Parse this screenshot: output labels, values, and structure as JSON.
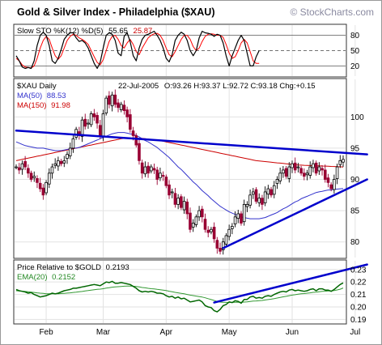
{
  "header": {
    "title": "Gold & Silver Index - Philadelphia ($XAU)",
    "copyright": "© StockCharts.com"
  },
  "chart_data": [
    {
      "type": "line",
      "panel": "stochastic",
      "label": "Slow STO %K(12) %D(5)",
      "k_value": "55.65",
      "d_value": "25.87",
      "ylim": [
        0,
        100
      ],
      "yticks": [
        "80",
        "50",
        "20"
      ],
      "series": [
        {
          "name": "%K",
          "color": "#000000",
          "values": [
            40,
            30,
            18,
            15,
            17,
            15,
            30,
            60,
            80,
            86,
            80,
            60,
            30,
            25,
            35,
            52,
            72,
            80,
            85,
            85,
            75,
            68,
            70,
            65,
            55,
            40,
            25,
            15,
            27,
            55,
            80,
            85,
            82,
            70,
            45,
            40,
            78,
            85,
            68,
            40,
            30,
            55,
            72,
            80,
            82,
            85,
            88,
            80,
            70,
            55,
            35,
            28,
            42,
            70,
            80,
            86,
            82,
            70,
            50,
            40,
            50,
            75,
            88,
            85,
            84,
            82,
            78,
            82,
            80,
            65,
            40,
            20,
            40,
            55,
            70,
            80,
            70,
            45,
            20,
            20,
            38,
            50
          ]
        },
        {
          "name": "%D",
          "color": "#ff0000",
          "values": [
            35,
            30,
            22,
            18,
            17,
            16,
            20,
            35,
            55,
            70,
            78,
            72,
            55,
            40,
            33,
            40,
            55,
            70,
            78,
            82,
            80,
            75,
            72,
            68,
            62,
            50,
            38,
            27,
            22,
            32,
            50,
            68,
            78,
            80,
            72,
            60,
            55,
            65,
            72,
            62,
            48,
            42,
            55,
            65,
            75,
            80,
            83,
            84,
            80,
            70,
            55,
            42,
            38,
            48,
            60,
            72,
            80,
            80,
            72,
            58,
            50,
            55,
            68,
            78,
            82,
            83,
            82,
            80,
            80,
            76,
            62,
            45,
            35,
            38,
            50,
            65,
            72,
            65,
            48,
            30,
            25,
            25
          ]
        }
      ]
    },
    {
      "type": "candlestick",
      "panel": "price",
      "label": "$XAU Daily",
      "quote_date": "22-Jul-2005",
      "quote": "O:93.26 H:93.37 L:92.72 C:93.18 Chg:+0.15",
      "ylim": [
        77.5,
        106
      ],
      "yticks": [
        "100",
        "95",
        "90",
        "85",
        "80"
      ],
      "x_labels": [
        "Feb",
        "Mar",
        "Apr",
        "May",
        "Jun",
        "Jul"
      ],
      "x_label_index": [
        10,
        29,
        50,
        71,
        92,
        113
      ],
      "close": [
        92,
        91.5,
        92.5,
        92,
        91,
        90,
        90.5,
        89.5,
        88.5,
        87.5,
        89.5,
        91,
        92,
        92.5,
        93,
        92.5,
        93,
        94,
        95,
        96.5,
        98,
        97,
        99.5,
        98.5,
        99,
        100.5,
        100,
        99,
        97,
        100.5,
        103,
        102,
        103.5,
        102,
        101.5,
        102,
        101,
        100,
        98,
        97,
        95.5,
        93,
        91,
        92,
        91,
        92,
        91.5,
        90,
        91,
        90.5,
        89,
        87.5,
        88,
        86,
        87,
        85.5,
        86.5,
        84.5,
        82,
        83,
        84,
        85,
        84,
        82,
        81.5,
        82,
        80.5,
        79,
        78.5,
        80,
        81,
        82,
        82.5,
        84,
        84.5,
        83,
        86,
        86,
        87.5,
        88,
        86.5,
        87,
        86,
        88,
        88.5,
        87.5,
        89,
        90,
        91,
        91.5,
        90.5,
        92,
        92.5,
        91.5,
        92,
        91,
        90.5,
        91,
        92,
        92.5,
        91,
        92,
        91.5,
        90,
        89.5,
        88.5,
        90,
        92,
        93,
        93.2
      ],
      "series": [
        {
          "name": "MA(50)",
          "value": "88.53",
          "color": "#3333cc",
          "values": [
            96,
            95.8,
            95.6,
            95.4,
            95.3,
            95.2,
            95.1,
            95,
            95,
            95,
            94.9,
            94.8,
            94.7,
            94.6,
            94.6,
            94.6,
            94.7,
            94.8,
            94.9,
            95,
            95,
            95.1,
            95.3,
            95.5,
            95.7,
            95.9,
            96.1,
            96.3,
            96.5,
            96.7,
            96.9,
            97.1,
            97.3,
            97.4,
            97.5,
            97.5,
            97.5,
            97.4,
            97.3,
            97.2,
            97,
            96.8,
            96.5,
            96.2,
            96,
            95.7,
            95.4,
            95.1,
            94.7,
            94.3,
            93.9,
            93.5,
            93,
            92.5,
            92,
            91.6,
            91.1,
            90.6,
            90.1,
            89.6,
            89.2,
            88.7,
            88.2,
            87.8,
            87.4,
            86.9,
            86.5,
            86.1,
            85.7,
            85.4,
            85.1,
            84.8,
            84.6,
            84.4,
            84.2,
            84,
            83.9,
            83.8,
            83.7,
            83.7,
            83.7,
            83.7,
            83.8,
            83.9,
            84.1,
            84.3,
            84.5,
            84.7,
            85,
            85.3,
            85.5,
            85.8,
            86.1,
            86.4,
            86.6,
            86.9,
            87.1,
            87.3,
            87.5,
            87.7,
            87.9,
            88,
            88.1,
            88.2,
            88.3,
            88.3,
            88.4,
            88.45,
            88.5,
            88.53
          ]
        },
        {
          "name": "MA(150)",
          "value": "91.98",
          "color": "#cc0000",
          "values": [
            93,
            93.1,
            93.2,
            93.3,
            93.4,
            93.5,
            93.6,
            93.7,
            93.8,
            93.9,
            94,
            94.1,
            94.2,
            94.3,
            94.4,
            94.5,
            94.6,
            94.7,
            94.8,
            94.9,
            95,
            95.1,
            95.2,
            95.3,
            95.4,
            95.5,
            95.6,
            95.7,
            95.8,
            95.9,
            96,
            96.1,
            96.2,
            96.3,
            96.4,
            96.5,
            96.55,
            96.6,
            96.6,
            96.6,
            96.6,
            96.6,
            96.55,
            96.5,
            96.45,
            96.4,
            96.35,
            96.3,
            96.2,
            96.1,
            96,
            95.9,
            95.8,
            95.7,
            95.6,
            95.5,
            95.4,
            95.3,
            95.2,
            95.1,
            95,
            94.9,
            94.8,
            94.7,
            94.6,
            94.5,
            94.4,
            94.3,
            94.2,
            94.1,
            94,
            93.9,
            93.8,
            93.7,
            93.6,
            93.5,
            93.4,
            93.3,
            93.2,
            93.1,
            93,
            92.95,
            92.9,
            92.85,
            92.8,
            92.75,
            92.7,
            92.65,
            92.6,
            92.55,
            92.5,
            92.45,
            92.4,
            92.35,
            92.3,
            92.28,
            92.26,
            92.24,
            92.22,
            92.2,
            92.18,
            92.16,
            92.14,
            92.12,
            92.1,
            92.08,
            92.06,
            92.04,
            92.02,
            91.98
          ]
        }
      ],
      "trendlines": [
        {
          "color": "#0000cc",
          "from": [
            0,
            97.8
          ],
          "to": [
            117,
            94
          ]
        },
        {
          "color": "#0000cc",
          "from": [
            69,
            79
          ],
          "to": [
            117,
            90
          ]
        }
      ]
    },
    {
      "type": "line",
      "panel": "relative",
      "label": "Price Relative to $GOLD",
      "value": "0.2193",
      "ylim": [
        0.187,
        0.237
      ],
      "yticks": [
        "0.23",
        "0.22",
        "0.21",
        "0.20",
        "0.19"
      ],
      "series": [
        {
          "name": "Price Relative",
          "color": "#006600",
          "values": [
            0.214,
            0.213,
            0.2125,
            0.212,
            0.211,
            0.2115,
            0.21,
            0.209,
            0.208,
            0.2085,
            0.209,
            0.21,
            0.211,
            0.2105,
            0.211,
            0.212,
            0.213,
            0.2135,
            0.214,
            0.215,
            0.215,
            0.2155,
            0.216,
            0.2165,
            0.217,
            0.2175,
            0.218,
            0.2175,
            0.217,
            0.2185,
            0.22,
            0.2195,
            0.2205,
            0.219,
            0.219,
            0.2195,
            0.219,
            0.2185,
            0.218,
            0.2165,
            0.215,
            0.213,
            0.212,
            0.2125,
            0.212,
            0.2125,
            0.212,
            0.211,
            0.211,
            0.2105,
            0.209,
            0.208,
            0.2085,
            0.207,
            0.208,
            0.2065,
            0.207,
            0.2055,
            0.204,
            0.2045,
            0.205,
            0.2055,
            0.204,
            0.201,
            0.2,
            0.1995,
            0.197,
            0.196,
            0.198,
            0.201,
            0.202,
            0.204,
            0.2035,
            0.205,
            0.2045,
            0.203,
            0.206,
            0.206,
            0.208,
            0.2085,
            0.207,
            0.2075,
            0.207,
            0.2085,
            0.209,
            0.2085,
            0.21,
            0.211,
            0.212,
            0.2125,
            0.212,
            0.2135,
            0.214,
            0.213,
            0.2135,
            0.213,
            0.2125,
            0.213,
            0.214,
            0.2145,
            0.213,
            0.2145,
            0.2145,
            0.2135,
            0.2135,
            0.2125,
            0.214,
            0.216,
            0.218,
            0.2193
          ]
        },
        {
          "name": "EMA(20)",
          "value": "0.2152",
          "color": "#339933",
          "values": [
            0.213,
            0.2128,
            0.2126,
            0.2124,
            0.2121,
            0.2119,
            0.2116,
            0.2113,
            0.211,
            0.2108,
            0.2106,
            0.2106,
            0.2106,
            0.2106,
            0.2106,
            0.2107,
            0.2109,
            0.2111,
            0.2113,
            0.2116,
            0.2118,
            0.2121,
            0.2124,
            0.2128,
            0.2131,
            0.2135,
            0.2138,
            0.2141,
            0.2143,
            0.2146,
            0.2151,
            0.2154,
            0.2158,
            0.216,
            0.2162,
            0.2164,
            0.2166,
            0.2167,
            0.2167,
            0.2166,
            0.2164,
            0.216,
            0.2156,
            0.2153,
            0.2149,
            0.2146,
            0.2144,
            0.2141,
            0.2138,
            0.2135,
            0.2131,
            0.2126,
            0.2122,
            0.2117,
            0.2113,
            0.2109,
            0.2105,
            0.21,
            0.2095,
            0.2091,
            0.2087,
            0.2083,
            0.2079,
            0.2073,
            0.2066,
            0.2059,
            0.2052,
            0.2044,
            0.2039,
            0.2037,
            0.2036,
            0.2036,
            0.2036,
            0.2037,
            0.2037,
            0.2037,
            0.2039,
            0.204,
            0.2044,
            0.2047,
            0.2048,
            0.205,
            0.2052,
            0.2056,
            0.2059,
            0.2062,
            0.2066,
            0.2071,
            0.2076,
            0.2081,
            0.2085,
            0.209,
            0.2095,
            0.2098,
            0.2102,
            0.2105,
            0.2107,
            0.211,
            0.2113,
            0.2117,
            0.2118,
            0.2122,
            0.2125,
            0.2126,
            0.2128,
            0.2128,
            0.2131,
            0.2136,
            0.2142,
            0.2152
          ]
        }
      ],
      "trendlines": [
        {
          "color": "#0000cc",
          "from": [
            66,
            0.2035
          ],
          "to": [
            117,
            0.234
          ]
        }
      ]
    }
  ]
}
